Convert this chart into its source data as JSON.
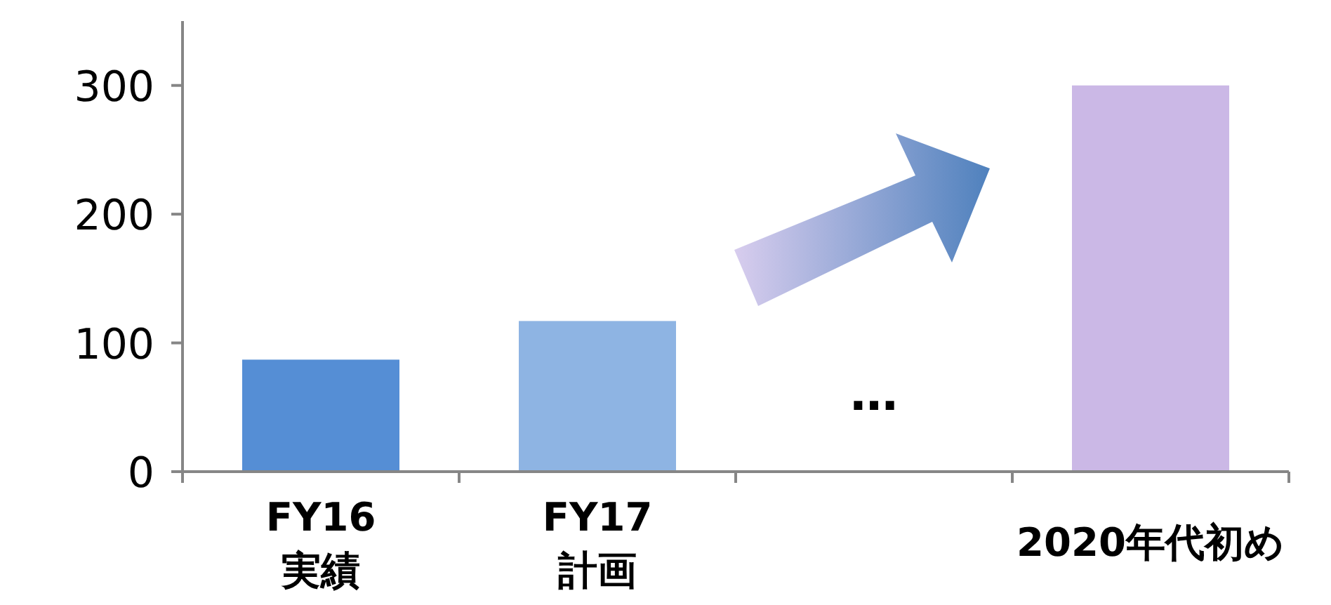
{
  "chart_data": {
    "type": "bar",
    "categories": [
      "FY16\n実績",
      "FY17\n計画",
      null,
      "2020年代初め"
    ],
    "values": [
      87,
      117,
      null,
      300
    ],
    "colors": [
      "#558ed5",
      "#8eb4e3",
      null,
      "#cbb8e6"
    ],
    "ylim": [
      0,
      350
    ],
    "yticks": [
      0,
      100,
      200,
      300
    ],
    "grid": false,
    "annotations": [
      "…"
    ]
  }
}
